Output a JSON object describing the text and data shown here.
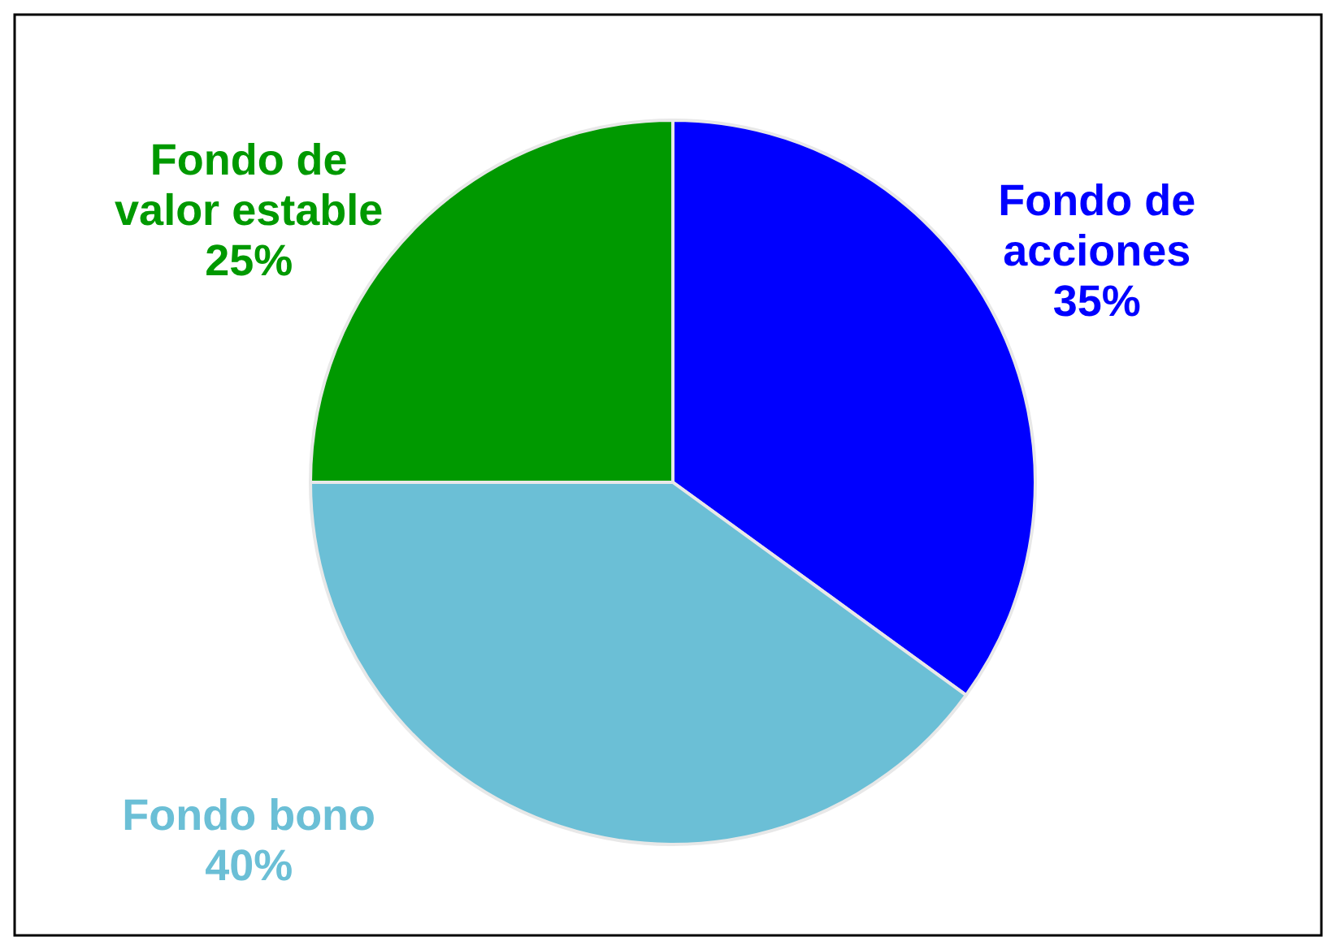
{
  "chart_data": {
    "type": "pie",
    "categories": [
      "Fondo de acciones",
      "Fondo bono",
      "Fondo de valor estable"
    ],
    "values": [
      35,
      40,
      25
    ],
    "colors": [
      "#0000ff",
      "#6bbfd6",
      "#009900"
    ],
    "value_labels": [
      "35%",
      "40%",
      "25%"
    ]
  }
}
